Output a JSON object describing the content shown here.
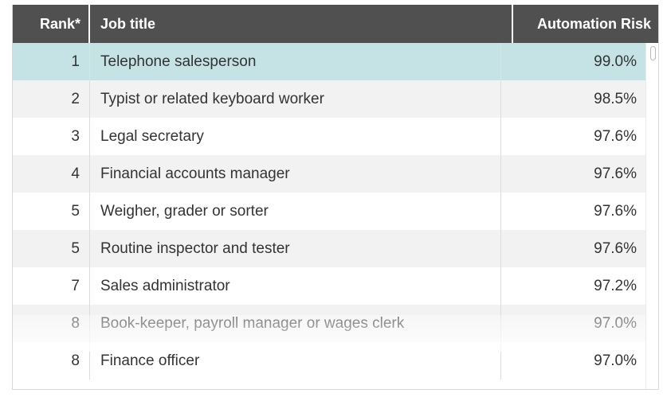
{
  "table": {
    "headers": {
      "rank": "Rank*",
      "job": "Job title",
      "risk": "Automation Risk"
    },
    "selected_row": 0,
    "rows": [
      {
        "rank": "1",
        "job": "Telephone salesperson",
        "risk": "99.0%"
      },
      {
        "rank": "2",
        "job": "Typist or related keyboard worker",
        "risk": "98.5%"
      },
      {
        "rank": "3",
        "job": "Legal secretary",
        "risk": "97.6%"
      },
      {
        "rank": "4",
        "job": "Financial accounts manager",
        "risk": "97.6%"
      },
      {
        "rank": "5",
        "job": "Weigher, grader or sorter",
        "risk": "97.6%"
      },
      {
        "rank": "5",
        "job": "Routine inspector and tester",
        "risk": "97.6%"
      },
      {
        "rank": "7",
        "job": "Sales administrator",
        "risk": "97.2%"
      },
      {
        "rank": "8",
        "job": "Book-keeper, payroll manager or wages clerk",
        "risk": "97.0%"
      },
      {
        "rank": "8",
        "job": "Finance officer",
        "risk": "97.0%"
      }
    ]
  },
  "colors": {
    "header_bg": "#505050",
    "selected_row_bg": "#c5e3e5",
    "striped_row_bg": "#f2f2f2"
  }
}
